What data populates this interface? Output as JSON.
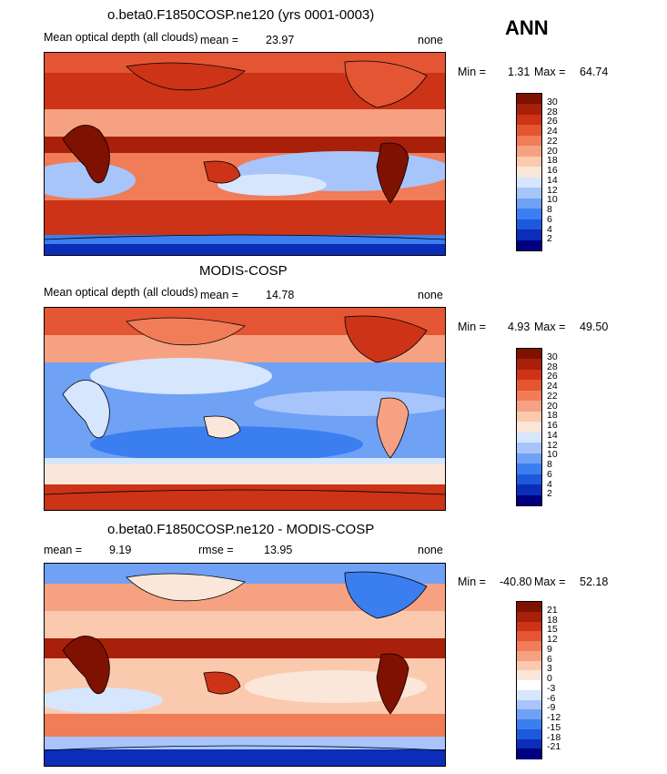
{
  "season": "ANN",
  "colors": {
    "abs_scale": [
      "#000080",
      "#0b2db8",
      "#1e58dc",
      "#3a7ef0",
      "#6fa1f5",
      "#a7c5fa",
      "#d6e6fd",
      "#fbe6da",
      "#fbc9ae",
      "#f6a282",
      "#f07c58",
      "#e45533",
      "#cc3317",
      "#a8200a",
      "#7f1100"
    ],
    "diff_scale": [
      "#000080",
      "#0b2db8",
      "#1e58dc",
      "#3a7ef0",
      "#6fa1f5",
      "#a7c5fa",
      "#d6e6fd",
      "#ffffff",
      "#fbe6da",
      "#fbc9ae",
      "#f6a282",
      "#f07c58",
      "#e45533",
      "#cc3317",
      "#a8200a",
      "#7f1100"
    ],
    "land_outline": "#000000"
  },
  "panels": [
    {
      "title": "o.beta0.F1850COSP.ne120 (yrs 0001-0003)",
      "variable": "Mean optical depth (all clouds)",
      "stat_label": "mean =",
      "stat_value": "23.97",
      "mask": "none",
      "min_label": "Min =",
      "min_value": "1.31",
      "max_label": "Max =",
      "max_value": "64.74",
      "colorbar_ticks": [
        "30",
        "28",
        "26",
        "24",
        "22",
        "20",
        "18",
        "16",
        "14",
        "12",
        "10",
        "8",
        "6",
        "4",
        "2"
      ]
    },
    {
      "title": "MODIS-COSP",
      "variable": "Mean optical depth (all clouds)",
      "stat_label": "mean =",
      "stat_value": "14.78",
      "mask": "none",
      "min_label": "Min =",
      "min_value": "4.93",
      "max_label": "Max =",
      "max_value": "49.50",
      "colorbar_ticks": [
        "30",
        "28",
        "26",
        "24",
        "22",
        "20",
        "18",
        "16",
        "14",
        "12",
        "10",
        "8",
        "6",
        "4",
        "2"
      ]
    },
    {
      "title": "o.beta0.F1850COSP.ne120 - MODIS-COSP",
      "mean_label": "mean =",
      "mean_value": "9.19",
      "rmse_label": "rmse =",
      "rmse_value": "13.95",
      "mask": "none",
      "min_label": "Min =",
      "min_value": "-40.80",
      "max_label": "Max =",
      "max_value": "52.18",
      "colorbar_ticks": [
        "21",
        "18",
        "15",
        "12",
        "9",
        "6",
        "3",
        "0",
        "-3",
        "-6",
        "-9",
        "-12",
        "-15",
        "-18",
        "-21"
      ]
    }
  ]
}
